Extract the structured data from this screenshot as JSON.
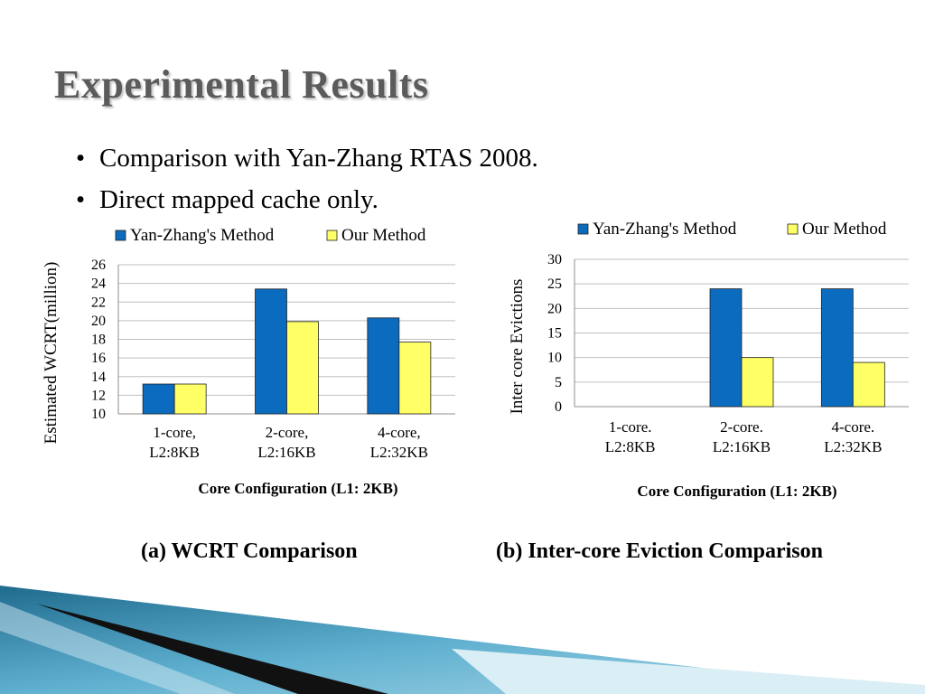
{
  "slide": {
    "title": "Experimental Results",
    "bullets": [
      "Comparison with Yan-Zhang RTAS 2008.",
      "Direct mapped cache only."
    ]
  },
  "captions": {
    "a": "(a) WCRT Comparison",
    "b": "(b) Inter-core Eviction Comparison"
  },
  "colors": {
    "series_blue": "#0b6bbf",
    "series_yellow": "#ffff66",
    "grid": "#bfbfbf",
    "title": "#5b5b5b"
  },
  "chart_data": [
    {
      "type": "bar",
      "ylabel": "Estimated WCRT(million)",
      "xlabel": "Core Configuration (L1: 2KB)",
      "categories": [
        [
          "1-core,",
          "L2:8KB"
        ],
        [
          "2-core,",
          "L2:16KB"
        ],
        [
          "4-core,",
          "L2:32KB"
        ]
      ],
      "series": [
        {
          "name": "Yan-Zhang's Method",
          "values": [
            13.2,
            23.4,
            20.3
          ]
        },
        {
          "name": "Our Method",
          "values": [
            13.2,
            19.9,
            17.7
          ]
        }
      ],
      "ylim": [
        10,
        26
      ],
      "yticks": [
        10,
        12,
        14,
        16,
        18,
        20,
        22,
        24,
        26
      ],
      "grid": true,
      "legend": "top"
    },
    {
      "type": "bar",
      "ylabel": "Inter core Evictions",
      "xlabel": "Core Configuration (L1: 2KB)",
      "categories": [
        [
          "1-core.",
          "L2:8KB"
        ],
        [
          "2-core.",
          "L2:16KB"
        ],
        [
          "4-core.",
          "L2:32KB"
        ]
      ],
      "series": [
        {
          "name": "Yan-Zhang's Method",
          "values": [
            0,
            24,
            24
          ]
        },
        {
          "name": "Our Method",
          "values": [
            0,
            10,
            9
          ]
        }
      ],
      "ylim": [
        0,
        30
      ],
      "yticks": [
        0,
        5,
        10,
        15,
        20,
        25,
        30
      ],
      "grid": true,
      "legend": "top"
    }
  ]
}
